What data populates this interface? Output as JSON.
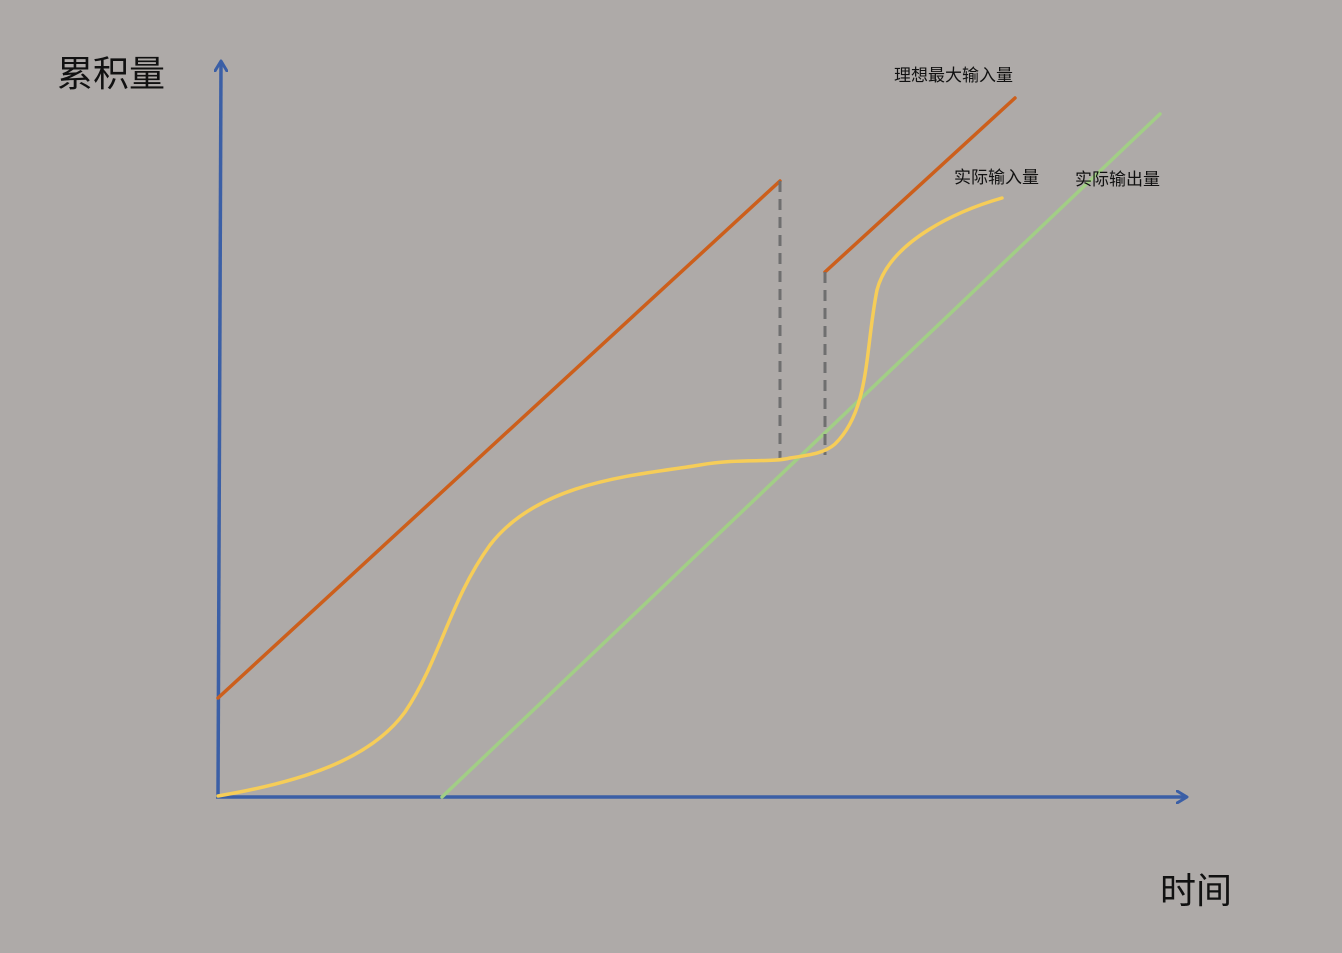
{
  "axes": {
    "y_title": "累积量",
    "x_title": "时间"
  },
  "series": [
    {
      "key": "ideal",
      "label": "理想最大输入量",
      "color": "#cc5f1c"
    },
    {
      "key": "actual_in",
      "label": "实际输入量",
      "color": "#f6cd58"
    },
    {
      "key": "actual_out",
      "label": "实际输出量",
      "color": "#a2ce86"
    }
  ],
  "colors": {
    "background": "#aeaaa8",
    "axis": "#3b5fa6",
    "dashed": "#6f6f6f"
  }
}
